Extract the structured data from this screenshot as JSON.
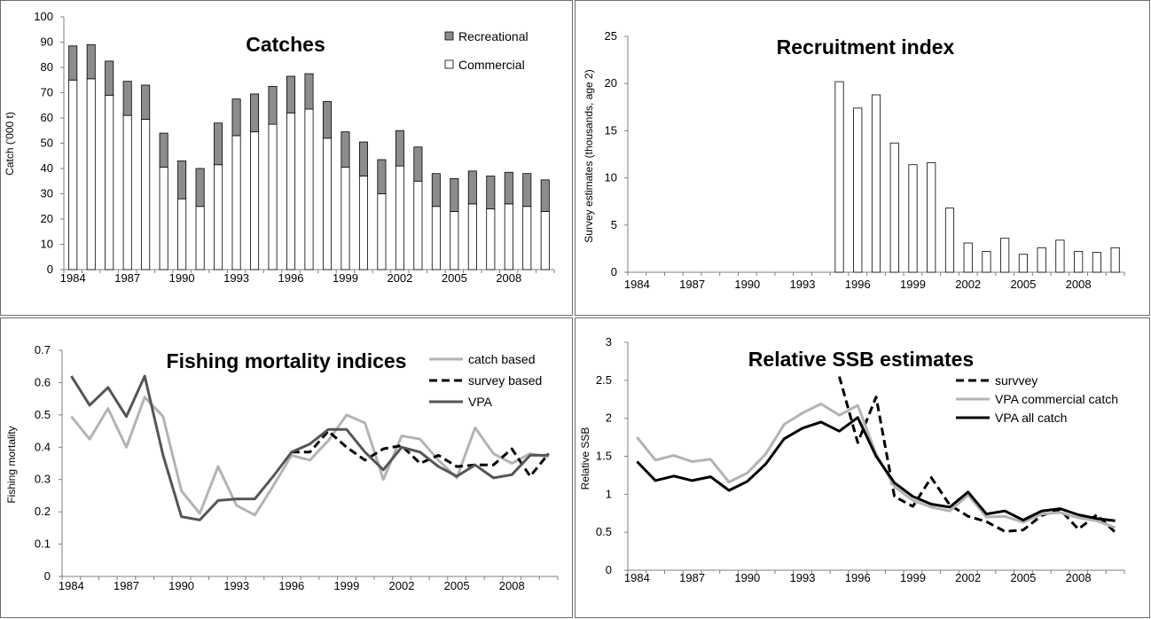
{
  "chart_data": [
    {
      "type": "bar",
      "title": "Catches",
      "xlabel": "",
      "ylabel": "Catch ('000 t)",
      "ylim": [
        0,
        100
      ],
      "yticks": [
        "0",
        "10",
        "20",
        "30",
        "40",
        "50",
        "60",
        "70",
        "80",
        "90",
        "100"
      ],
      "x": [
        1984,
        1985,
        1986,
        1987,
        1988,
        1989,
        1990,
        1991,
        1992,
        1993,
        1994,
        1995,
        1996,
        1997,
        1998,
        1999,
        2000,
        2001,
        2002,
        2003,
        2004,
        2005,
        2006,
        2007,
        2008,
        2009,
        2010
      ],
      "xticks": [
        "1984",
        "1987",
        "1990",
        "1993",
        "1996",
        "1999",
        "2002",
        "2005",
        "2008"
      ],
      "stacked": true,
      "series": [
        {
          "name": "Commercial",
          "color": "#ffffff",
          "values": [
            75,
            75.5,
            69,
            61,
            59.5,
            40.5,
            28,
            25,
            41.5,
            53,
            54.5,
            57.5,
            62,
            63.5,
            52,
            40.5,
            37,
            30,
            41,
            35,
            25,
            23,
            26,
            24,
            26,
            25,
            23
          ]
        },
        {
          "name": "Recreational",
          "color": "#8c8c8c",
          "values": [
            13.5,
            13.5,
            13.5,
            13.5,
            13.5,
            13.5,
            15,
            15,
            16.5,
            14.5,
            15,
            15,
            14.5,
            14,
            14.5,
            14,
            13.5,
            13.5,
            14,
            13.5,
            13,
            13,
            13,
            13,
            12.5,
            13,
            12.5
          ]
        }
      ],
      "legend": [
        "Recreational",
        "Commercial"
      ]
    },
    {
      "type": "bar",
      "title": "Recruitment index",
      "xlabel": "",
      "ylabel": "Survey estimates  (thousands, age 2)",
      "ylim": [
        0,
        25
      ],
      "yticks": [
        "0",
        "5",
        "10",
        "15",
        "20",
        "25"
      ],
      "xticks": [
        "1984",
        "1987",
        "1990",
        "1993",
        "1996",
        "1999",
        "2002",
        "2005",
        "2008"
      ],
      "x": [
        1995,
        1996,
        1997,
        1998,
        1999,
        2000,
        2001,
        2002,
        2003,
        2004,
        2005,
        2006,
        2007,
        2008,
        2009,
        2010
      ],
      "values": [
        20.2,
        17.4,
        18.8,
        13.7,
        11.4,
        11.6,
        6.8,
        3.1,
        2.2,
        3.6,
        1.9,
        2.6,
        3.4,
        2.2,
        2.1,
        2.6
      ]
    },
    {
      "type": "line",
      "title": "Fishing mortality indices",
      "xlabel": "",
      "ylabel": "Fishing mortality",
      "ylim": [
        0,
        0.7
      ],
      "yticks": [
        "0",
        "0.1",
        "0.2",
        "0.3",
        "0.4",
        "0.5",
        "0.6",
        "0.7"
      ],
      "xticks": [
        "1984",
        "1987",
        "1990",
        "1993",
        "1996",
        "1999",
        "2002",
        "2005",
        "2008"
      ],
      "series": [
        {
          "name": "catch based",
          "color": "#b3b3b3",
          "dash": false,
          "x": [
            1984,
            1985,
            1986,
            1987,
            1988,
            1989,
            1990,
            1991,
            1992,
            1993,
            1994,
            1995,
            1996,
            1997,
            1998,
            1999,
            2000,
            2001,
            2002,
            2003,
            2004,
            2005,
            2006,
            2007,
            2008,
            2009,
            2010
          ],
          "values": [
            0.495,
            0.425,
            0.52,
            0.4,
            0.555,
            0.495,
            0.265,
            0.195,
            0.34,
            0.22,
            0.19,
            0.28,
            0.375,
            0.36,
            0.42,
            0.5,
            0.475,
            0.3,
            0.435,
            0.425,
            0.36,
            0.305,
            0.46,
            0.38,
            0.35,
            0.38,
            0.37
          ]
        },
        {
          "name": "survey based",
          "color": "#000000",
          "dash": true,
          "x": [
            1996,
            1997,
            1998,
            1999,
            2000,
            2001,
            2002,
            2003,
            2004,
            2005,
            2006,
            2007,
            2008,
            2009,
            2010
          ],
          "values": [
            0.385,
            0.385,
            0.45,
            0.4,
            0.36,
            0.395,
            0.405,
            0.35,
            0.375,
            0.34,
            0.345,
            0.345,
            0.395,
            0.31,
            0.38
          ]
        },
        {
          "name": "VPA",
          "color": "#555555",
          "dash": false,
          "x": [
            1984,
            1985,
            1986,
            1987,
            1988,
            1989,
            1990,
            1991,
            1992,
            1993,
            1994,
            1995,
            1996,
            1997,
            1998,
            1999,
            2000,
            2001,
            2002,
            2003,
            2004,
            2005,
            2006,
            2007,
            2008,
            2009,
            2010
          ],
          "values": [
            0.62,
            0.53,
            0.585,
            0.495,
            0.62,
            0.375,
            0.185,
            0.175,
            0.235,
            0.24,
            0.24,
            0.31,
            0.385,
            0.41,
            0.455,
            0.455,
            0.385,
            0.33,
            0.4,
            0.385,
            0.34,
            0.31,
            0.345,
            0.305,
            0.315,
            0.375,
            0.375
          ]
        }
      ]
    },
    {
      "type": "line",
      "title": "Relative SSB estimates",
      "xlabel": "",
      "ylabel": "Relative SSB",
      "ylim": [
        0,
        3
      ],
      "yticks": [
        "0",
        "0.5",
        "1",
        "1.5",
        "2",
        "2.5",
        "3"
      ],
      "xticks": [
        "1984",
        "1987",
        "1990",
        "1993",
        "1996",
        "1999",
        "2002",
        "2005",
        "2008"
      ],
      "series": [
        {
          "name": "survvey",
          "color": "#000000",
          "dash": true,
          "x": [
            1995,
            1996,
            1997,
            1998,
            1999,
            2000,
            2001,
            2002,
            2003,
            2004,
            2005,
            2006,
            2007,
            2008,
            2009,
            2010
          ],
          "values": [
            2.55,
            1.68,
            2.28,
            0.97,
            0.84,
            1.22,
            0.86,
            0.71,
            0.64,
            0.51,
            0.53,
            0.72,
            0.8,
            0.54,
            0.73,
            0.5
          ]
        },
        {
          "name": "VPA commercial catch",
          "color": "#b3b3b3",
          "dash": false,
          "x": [
            1984,
            1985,
            1986,
            1987,
            1988,
            1989,
            1990,
            1991,
            1992,
            1993,
            1994,
            1995,
            1996,
            1997,
            1998,
            1999,
            2000,
            2001,
            2002,
            2003,
            2004,
            2005,
            2006,
            2007,
            2008,
            2009,
            2010
          ],
          "values": [
            1.75,
            1.45,
            1.51,
            1.43,
            1.46,
            1.16,
            1.28,
            1.53,
            1.92,
            2.07,
            2.19,
            2.04,
            2.17,
            1.53,
            1.1,
            0.92,
            0.83,
            0.78,
            0.99,
            0.7,
            0.71,
            0.63,
            0.74,
            0.76,
            0.69,
            0.65,
            0.56
          ]
        },
        {
          "name": "VPA all catch",
          "color": "#000000",
          "dash": false,
          "x": [
            1984,
            1985,
            1986,
            1987,
            1988,
            1989,
            1990,
            1991,
            1992,
            1993,
            1994,
            1995,
            1996,
            1997,
            1998,
            1999,
            2000,
            2001,
            2002,
            2003,
            2004,
            2005,
            2006,
            2007,
            2008,
            2009,
            2010
          ],
          "values": [
            1.43,
            1.18,
            1.24,
            1.18,
            1.23,
            1.05,
            1.17,
            1.4,
            1.73,
            1.87,
            1.95,
            1.83,
            2.01,
            1.5,
            1.15,
            0.97,
            0.87,
            0.83,
            1.03,
            0.74,
            0.78,
            0.66,
            0.78,
            0.81,
            0.73,
            0.68,
            0.65
          ]
        }
      ]
    }
  ]
}
